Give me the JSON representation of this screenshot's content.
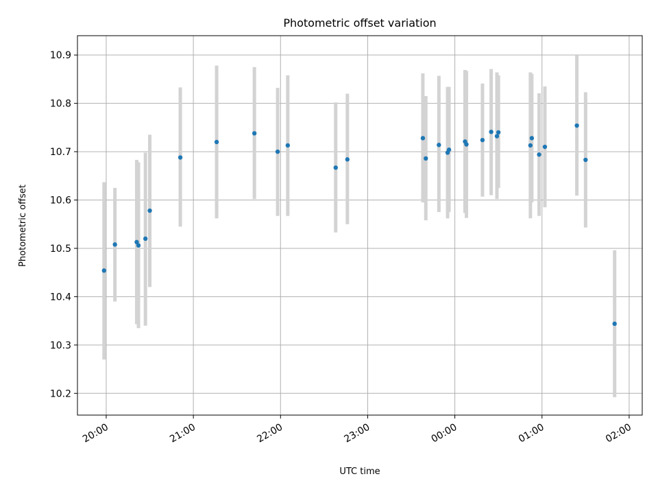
{
  "chart_data": {
    "type": "scatter",
    "title": "Photometric offset variation",
    "xlabel": "UTC time",
    "ylabel": "Photometric offset",
    "x_unit": "hours_since_midnight_utc",
    "xlim": [
      19.67,
      26.15
    ],
    "ylim": [
      10.155,
      10.94
    ],
    "x_ticks": [
      {
        "value": 20,
        "label": "20:00"
      },
      {
        "value": 21,
        "label": "21:00"
      },
      {
        "value": 22,
        "label": "22:00"
      },
      {
        "value": 23,
        "label": "23:00"
      },
      {
        "value": 24,
        "label": "00:00"
      },
      {
        "value": 25,
        "label": "01:00"
      },
      {
        "value": 26,
        "label": "02:00"
      }
    ],
    "y_ticks": [
      {
        "value": 10.2,
        "label": "10.2"
      },
      {
        "value": 10.3,
        "label": "10.3"
      },
      {
        "value": 10.4,
        "label": "10.4"
      },
      {
        "value": 10.5,
        "label": "10.5"
      },
      {
        "value": 10.6,
        "label": "10.6"
      },
      {
        "value": 10.7,
        "label": "10.7"
      },
      {
        "value": 10.8,
        "label": "10.8"
      },
      {
        "value": 10.9,
        "label": "10.9"
      }
    ],
    "grid": true,
    "x_tick_rotation_deg": 30,
    "marker_color": "#1f77b4",
    "errorbar_color": "#d3d3d3",
    "points": [
      {
        "x": 19.975,
        "y": 10.454,
        "ylow": 10.27,
        "yhigh": 10.637
      },
      {
        "x": 20.1,
        "y": 10.508,
        "ylow": 10.39,
        "yhigh": 10.625
      },
      {
        "x": 20.35,
        "y": 10.513,
        "ylow": 10.343,
        "yhigh": 10.683
      },
      {
        "x": 20.37,
        "y": 10.506,
        "ylow": 10.335,
        "yhigh": 10.678
      },
      {
        "x": 20.45,
        "y": 10.52,
        "ylow": 10.34,
        "yhigh": 10.698
      },
      {
        "x": 20.5,
        "y": 10.578,
        "ylow": 10.42,
        "yhigh": 10.735
      },
      {
        "x": 20.85,
        "y": 10.688,
        "ylow": 10.545,
        "yhigh": 10.833
      },
      {
        "x": 21.267,
        "y": 10.72,
        "ylow": 10.562,
        "yhigh": 10.878
      },
      {
        "x": 21.7,
        "y": 10.738,
        "ylow": 10.602,
        "yhigh": 10.875
      },
      {
        "x": 21.967,
        "y": 10.7,
        "ylow": 10.567,
        "yhigh": 10.832
      },
      {
        "x": 22.083,
        "y": 10.713,
        "ylow": 10.567,
        "yhigh": 10.858
      },
      {
        "x": 22.633,
        "y": 10.667,
        "ylow": 10.533,
        "yhigh": 10.802
      },
      {
        "x": 22.767,
        "y": 10.684,
        "ylow": 10.55,
        "yhigh": 10.82
      },
      {
        "x": 23.633,
        "y": 10.728,
        "ylow": 10.595,
        "yhigh": 10.862
      },
      {
        "x": 23.667,
        "y": 10.686,
        "ylow": 10.558,
        "yhigh": 10.815
      },
      {
        "x": 23.817,
        "y": 10.714,
        "ylow": 10.575,
        "yhigh": 10.857
      },
      {
        "x": 23.917,
        "y": 10.698,
        "ylow": 10.562,
        "yhigh": 10.834
      },
      {
        "x": 23.933,
        "y": 10.704,
        "ylow": 10.575,
        "yhigh": 10.834
      },
      {
        "x": 24.117,
        "y": 10.721,
        "ylow": 10.573,
        "yhigh": 10.869
      },
      {
        "x": 24.133,
        "y": 10.715,
        "ylow": 10.563,
        "yhigh": 10.867
      },
      {
        "x": 24.317,
        "y": 10.724,
        "ylow": 10.607,
        "yhigh": 10.841
      },
      {
        "x": 24.417,
        "y": 10.741,
        "ylow": 10.61,
        "yhigh": 10.871
      },
      {
        "x": 24.483,
        "y": 10.732,
        "ylow": 10.602,
        "yhigh": 10.864
      },
      {
        "x": 24.5,
        "y": 10.74,
        "ylow": 10.625,
        "yhigh": 10.858
      },
      {
        "x": 24.867,
        "y": 10.713,
        "ylow": 10.562,
        "yhigh": 10.864
      },
      {
        "x": 24.883,
        "y": 10.728,
        "ylow": 10.595,
        "yhigh": 10.861
      },
      {
        "x": 24.967,
        "y": 10.694,
        "ylow": 10.567,
        "yhigh": 10.821
      },
      {
        "x": 25.033,
        "y": 10.71,
        "ylow": 10.585,
        "yhigh": 10.835
      },
      {
        "x": 25.4,
        "y": 10.754,
        "ylow": 10.609,
        "yhigh": 10.899
      },
      {
        "x": 25.5,
        "y": 10.683,
        "ylow": 10.543,
        "yhigh": 10.823
      },
      {
        "x": 25.833,
        "y": 10.344,
        "ylow": 10.192,
        "yhigh": 10.496
      }
    ]
  }
}
